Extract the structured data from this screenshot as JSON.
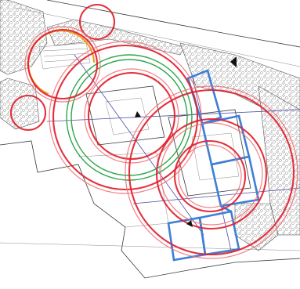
{
  "diagram": {
    "north_marker": "N"
  }
}
